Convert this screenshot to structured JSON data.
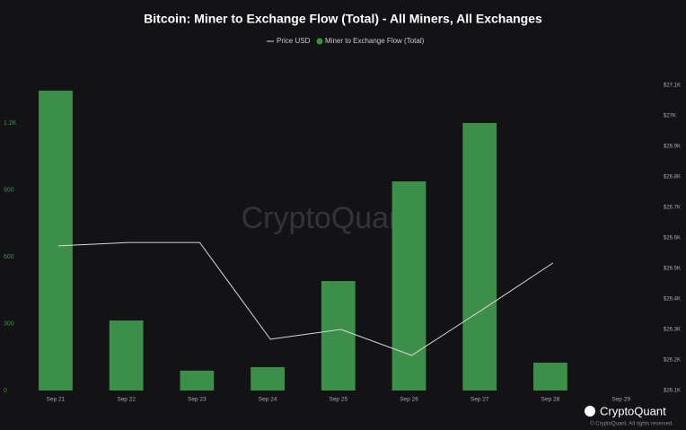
{
  "chart_data": {
    "type": "bar",
    "title": "Bitcoin: Miner to Exchange Flow (Total) - All Miners, All Exchanges",
    "categories": [
      "Sep 21",
      "Sep 22",
      "Sep 23",
      "Sep 24",
      "Sep 25",
      "Sep 26",
      "Sep 27",
      "Sep 28",
      "Sep 29"
    ],
    "series": [
      {
        "name": "Price USD",
        "type": "line",
        "axis": "y2",
        "color": "#d9d9d9",
        "values": [
          26574,
          26585,
          26585,
          26268,
          26300,
          26215,
          26365,
          26518,
          null
        ]
      },
      {
        "name": "Miner to Exchange Flow (Total)",
        "type": "bar",
        "color": "#3b8f48",
        "values": [
          1345,
          314,
          89,
          105,
          491,
          938,
          1200,
          125,
          null
        ]
      }
    ],
    "ylim": [
      0,
      1369
    ],
    "yticks": [
      0,
      300,
      600,
      900,
      {
        "value": 1200,
        "label": "1.2K"
      }
    ],
    "y2lim": [
      26100,
      27100
    ],
    "y2ticks": [
      {
        "value": 26100,
        "label": "$26.1K"
      },
      {
        "value": 26200,
        "label": "$26.2K"
      },
      {
        "value": 26300,
        "label": "$26.3K"
      },
      {
        "value": 26400,
        "label": "$26.4K"
      },
      {
        "value": 26500,
        "label": "$26.5K"
      },
      {
        "value": 26600,
        "label": "$26.6K"
      },
      {
        "value": 26700,
        "label": "$26.7K"
      },
      {
        "value": 26800,
        "label": "$26.8K"
      },
      {
        "value": 26900,
        "label": "$26.9K"
      },
      {
        "value": 27000,
        "label": "$27K"
      },
      {
        "value": 27100,
        "label": "$27.1K"
      }
    ],
    "watermark": "CryptoQuant",
    "brand": "CryptoQuant",
    "copyright": "© CryptoQuant. All rights reserved."
  }
}
